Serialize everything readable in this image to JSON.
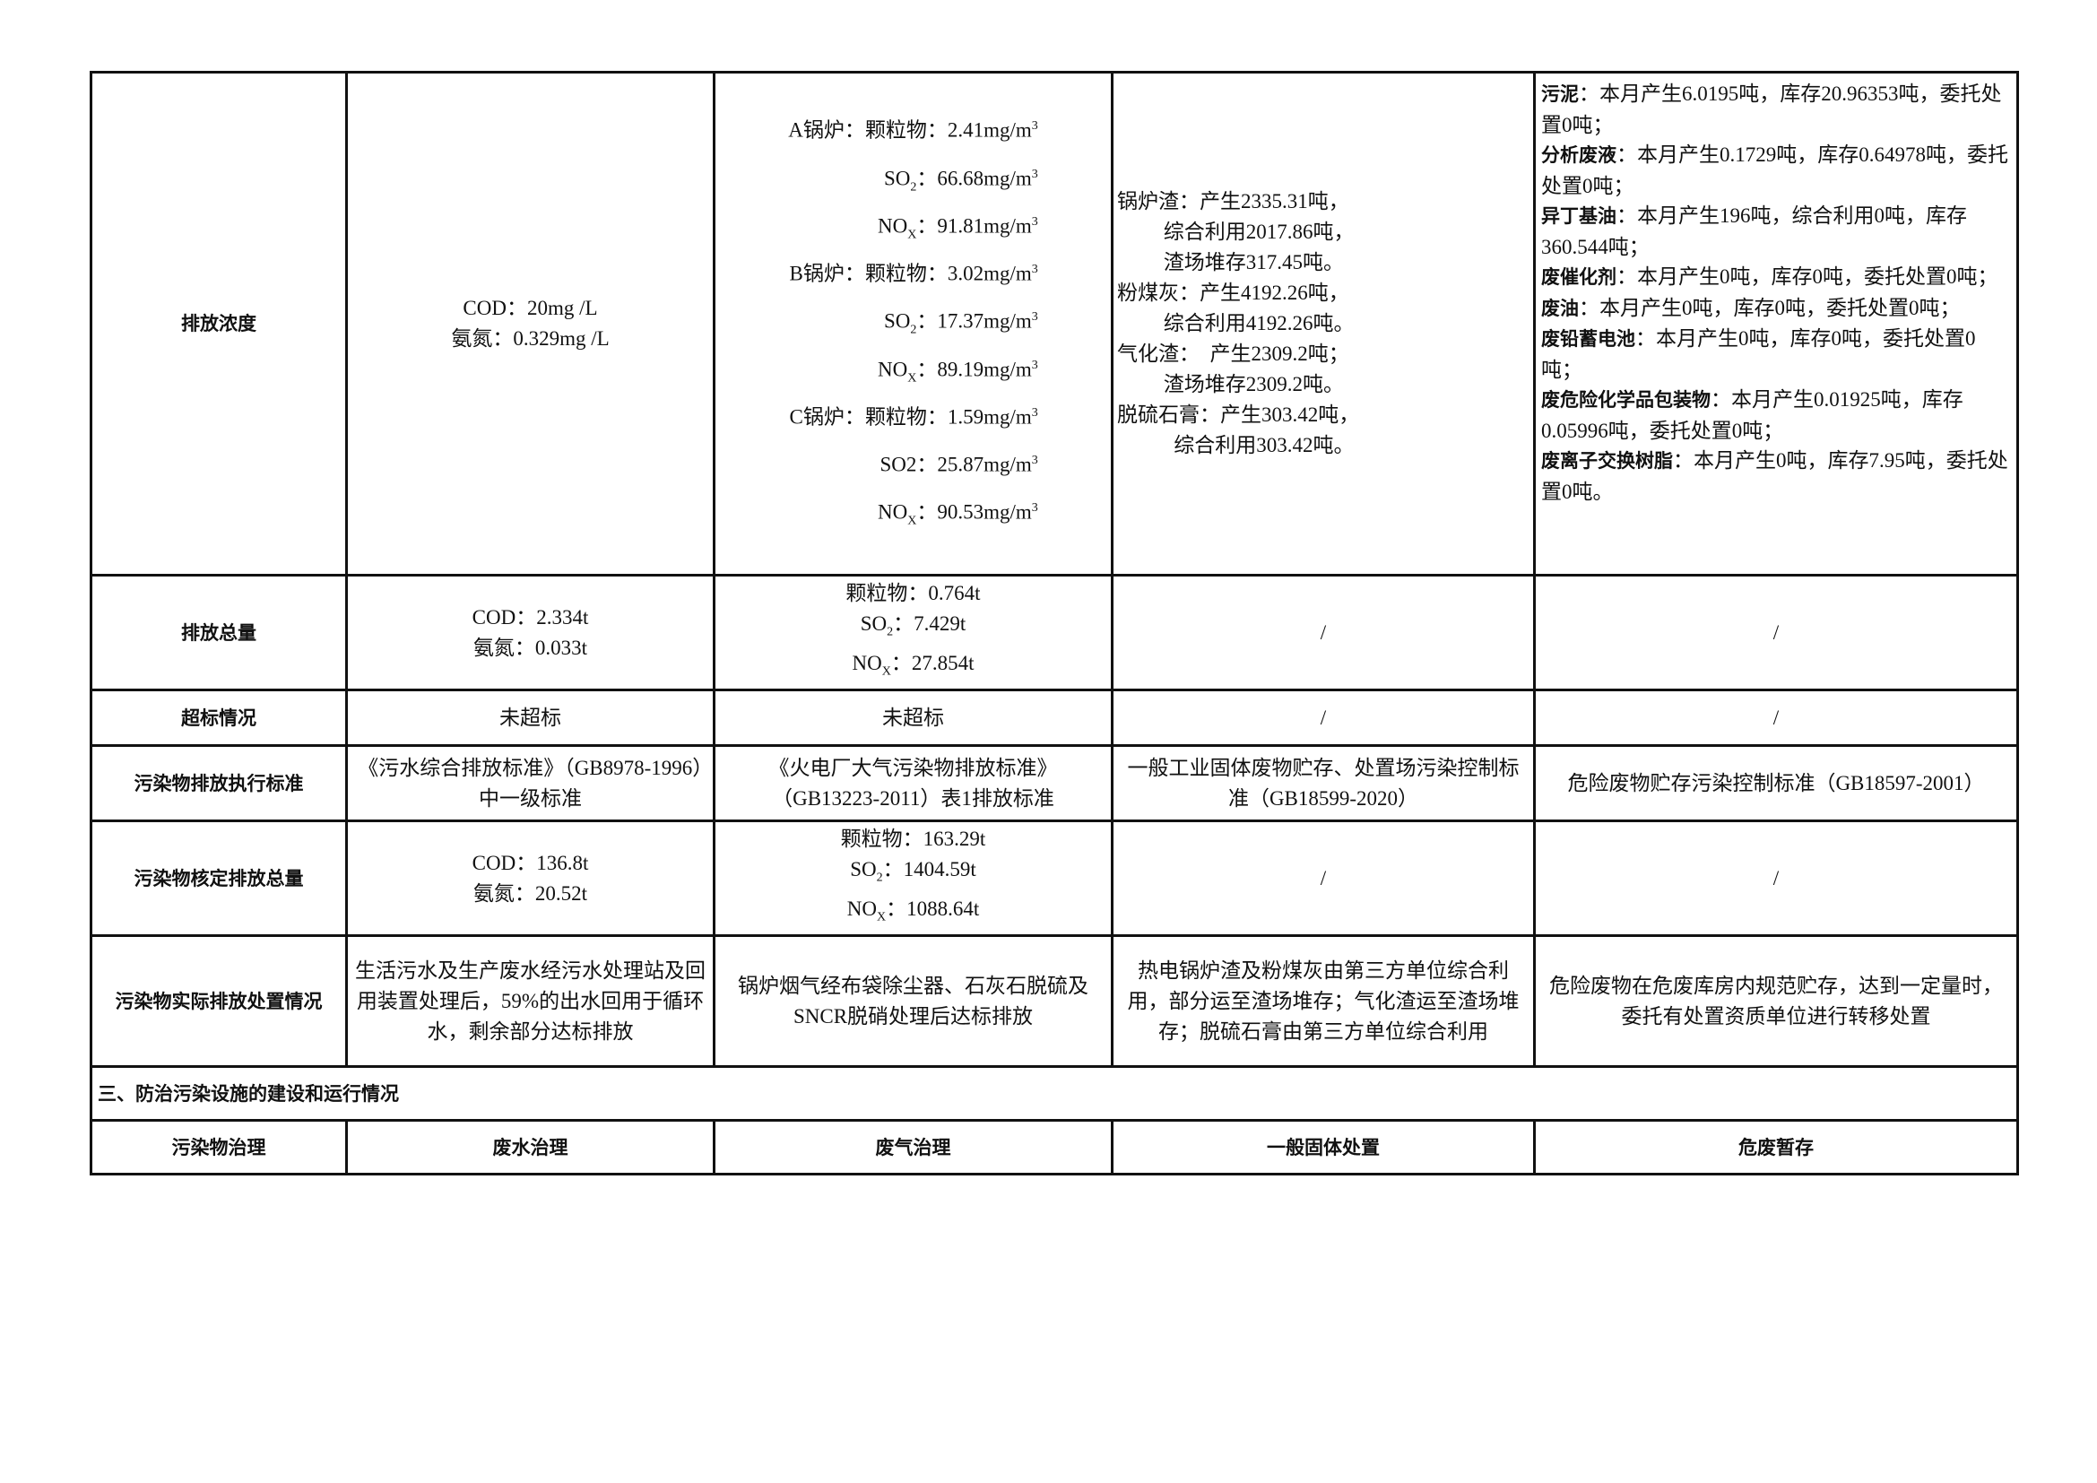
{
  "rows": {
    "concentration": {
      "label": "排放浓度",
      "water": [
        "COD：20mg /L",
        "氨氮：0.329mg /L"
      ],
      "gas": [
        {
          "prefix": "A锅炉：",
          "name": "颗粒物",
          "sub": "",
          "value": "2.41mg/m",
          "sup": "3"
        },
        {
          "prefix": "",
          "name": "SO",
          "sub": "2",
          "value": "66.68mg/m",
          "sup": "3"
        },
        {
          "prefix": "",
          "name": "NO",
          "sub": "X",
          "value": "91.81mg/m",
          "sup": "3"
        },
        {
          "prefix": "B锅炉：",
          "name": "颗粒物",
          "sub": "",
          "value": "3.02mg/m",
          "sup": "3"
        },
        {
          "prefix": "",
          "name": "SO",
          "sub": "2",
          "value": "17.37mg/m",
          "sup": "3"
        },
        {
          "prefix": "",
          "name": "NO",
          "sub": "X",
          "value": "89.19mg/m",
          "sup": "3"
        },
        {
          "prefix": "C锅炉：",
          "name": "颗粒物",
          "sub": "",
          "value": "1.59mg/m",
          "sup": "3"
        },
        {
          "prefix": "",
          "name": "SO2",
          "sub": "",
          "value": "25.87mg/m",
          "sup": "3"
        },
        {
          "prefix": "",
          "name": "NO",
          "sub": "X",
          "value": "90.53mg/m",
          "sup": "3"
        }
      ],
      "solid": [
        "锅炉渣：产生2335.31吨，",
        "         综合利用2017.86吨，",
        "         渣场堆存317.45吨。",
        "粉煤灰：产生4192.26吨，",
        "         综合利用4192.26吨。",
        "气化渣：  产生2309.2吨；",
        "         渣场堆存2309.2吨。",
        "脱硫石膏：产生303.42吨，",
        "           综合利用303.42吨。"
      ],
      "hazardous": [
        {
          "name": "污泥",
          "text": "：本月产生6.0195吨，库存20.96353吨，委托处置0吨；"
        },
        {
          "name": "分析废液",
          "text": "：本月产生0.1729吨，库存0.64978吨，委托处置0吨；"
        },
        {
          "name": "异丁基油",
          "text": "：本月产生196吨，综合利用0吨，库存360.544吨；"
        },
        {
          "name": "废催化剂",
          "text": "：本月产生0吨，库存0吨，委托处置0吨；"
        },
        {
          "name": "废油",
          "text": "：本月产生0吨，库存0吨，委托处置0吨；"
        },
        {
          "name": "废铅蓄电池",
          "text": "：本月产生0吨，库存0吨，委托处置0吨；"
        },
        {
          "name": "废危险化学品包装物",
          "text": "：本月产生0.01925吨，库存0.05996吨，委托处置0吨；"
        },
        {
          "name": "废离子交换树脂",
          "text": "：本月产生0吨，库存7.95吨，委托处置0吨。"
        }
      ]
    },
    "total": {
      "label": "排放总量",
      "water": [
        "COD：2.334t",
        "氨氮：0.033t"
      ],
      "gas_pm": "颗粒物：0.764t",
      "gas_so2": "7.429t",
      "gas_nox": "27.854t",
      "solid": "/",
      "hazardous": "/"
    },
    "exceed": {
      "label": "超标情况",
      "water": "未超标",
      "gas": "未超标",
      "solid": "/",
      "hazardous": "/"
    },
    "standard": {
      "label": "污染物排放执行标准",
      "water": "《污水综合排放标准》（GB8978-1996）中一级标准",
      "gas": "《火电厂大气污染物排放标准》（GB13223-2011）表1排放标准",
      "solid": "一般工业固体废物贮存、处置场污染控制标准（GB18599-2020）",
      "hazardous": "危险废物贮存污染控制标准（GB18597-2001）"
    },
    "approved": {
      "label": "污染物核定排放总量",
      "water": [
        "COD：136.8t",
        "氨氮：20.52t"
      ],
      "gas_pm": "颗粒物：163.29t",
      "gas_so2": "1404.59t",
      "gas_nox": "1088.64t",
      "solid": "/",
      "hazardous": "/"
    },
    "disposal": {
      "label": "污染物实际排放处置情况",
      "water": "生活污水及生产废水经污水处理站及回用装置处理后，59%的出水回用于循环水，剩余部分达标排放",
      "gas": "锅炉烟气经布袋除尘器、石灰石脱硫及SNCR脱硝处理后达标排放",
      "solid": "热电锅炉渣及粉煤灰由第三方单位综合利用，部分运至渣场堆存；气化渣运至渣场堆存；脱硫石膏由第三方单位综合利用",
      "hazardous": "危险废物在危废库房内规范贮存，达到一定量时，委托有处置资质单位进行转移处置"
    }
  },
  "section3": {
    "title": "三、防治污染设施的建设和运行情况",
    "headers": [
      "污染物治理",
      "废水治理",
      "废气治理",
      "一般固体处置",
      "危废暂存"
    ]
  }
}
